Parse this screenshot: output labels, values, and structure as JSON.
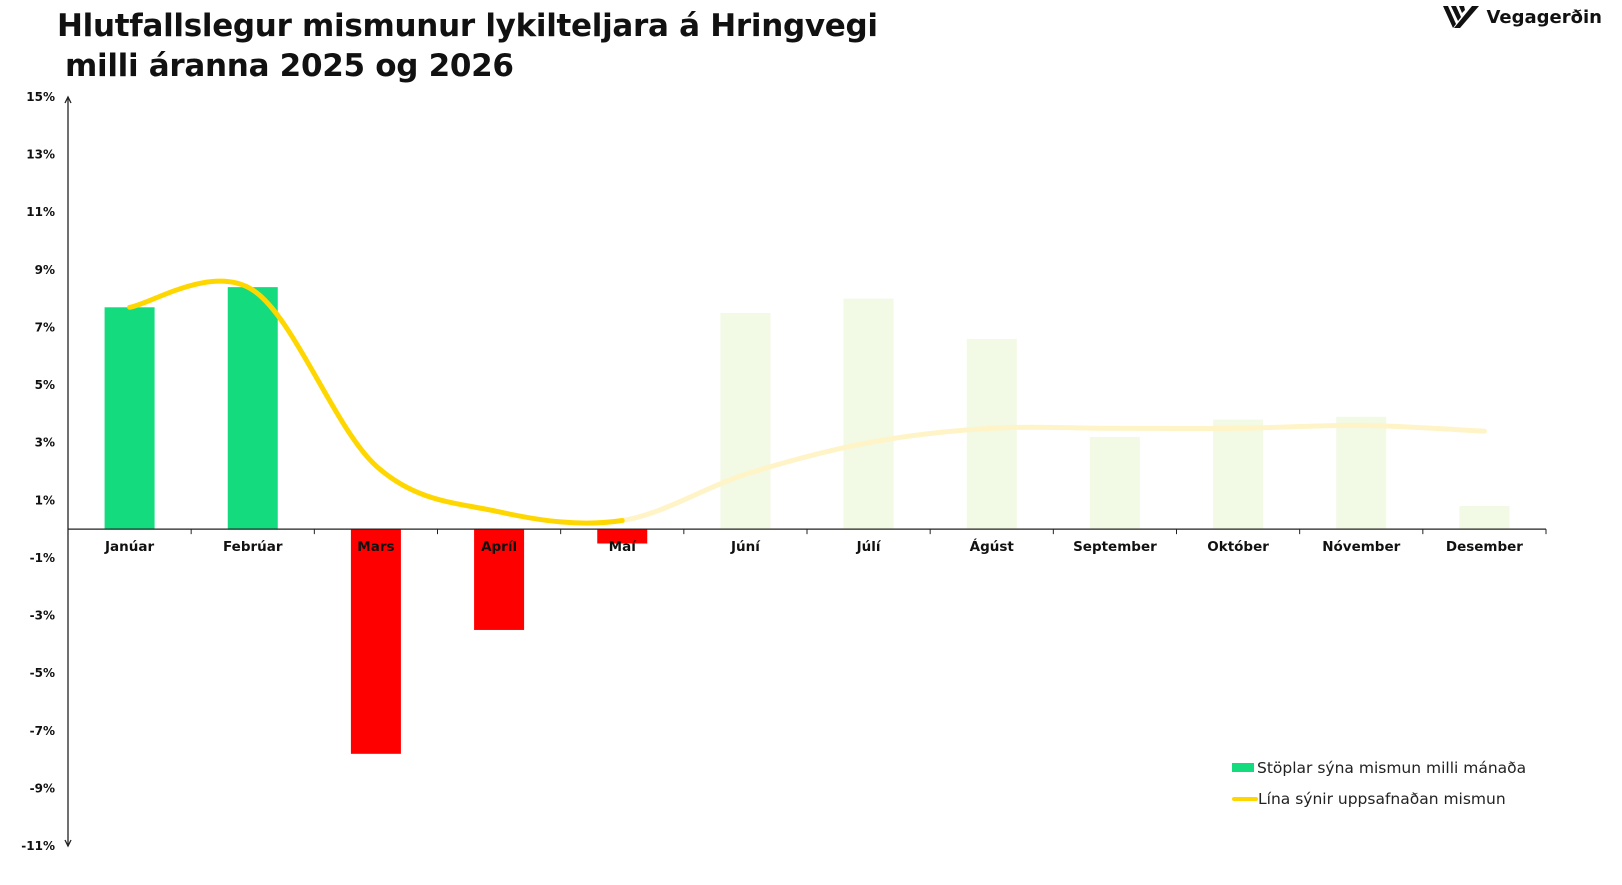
{
  "logo": {
    "text": "Vegagerðin",
    "icon": "vegagerdin-logo-icon"
  },
  "chart_data": {
    "type": "bar",
    "title_lines": [
      "Hlutfallslegur mismunur lykilteljara á Hringvegi",
      "milli áranna 2025 og 2026"
    ],
    "categories": [
      "Janúar",
      "Febrúar",
      "Mars",
      "Apríl",
      "Maí",
      "Júní",
      "Júlí",
      "Ágúst",
      "September",
      "Október",
      "Nóvember",
      "Desember"
    ],
    "yticks": [
      15,
      13,
      11,
      9,
      7,
      5,
      3,
      1,
      -1,
      -3,
      -5,
      -7,
      -9,
      -11
    ],
    "ytick_suffix": "%",
    "ylim": [
      -11,
      15
    ],
    "series": [
      {
        "type": "bar",
        "values": [
          7.7,
          8.4,
          -7.8,
          -3.5,
          -0.5,
          7.5,
          8.0,
          6.6,
          3.2,
          3.8,
          3.9,
          0.8
        ],
        "current_months": 5
      },
      {
        "type": "line",
        "values": [
          7.7,
          8.3,
          2.2,
          0.6,
          0.3,
          1.9,
          3.0,
          3.5,
          3.5,
          3.5,
          3.6,
          3.4
        ],
        "current_months": 5
      }
    ],
    "colors": {
      "positive": "#13db7e",
      "negative": "#ff0000",
      "future_bar": "#f2f9e4",
      "line": "#ffd700",
      "future_line": "#fff4c7"
    },
    "legend": [
      {
        "label": "Stöplar sýna mismun milli mánaða",
        "kind": "bar",
        "color": "#13db7e"
      },
      {
        "label": "Lína sýnir uppsafnaðan mismun",
        "kind": "line",
        "color": "#ffd700"
      }
    ],
    "legend_position": "bottom-right",
    "grid": false
  }
}
